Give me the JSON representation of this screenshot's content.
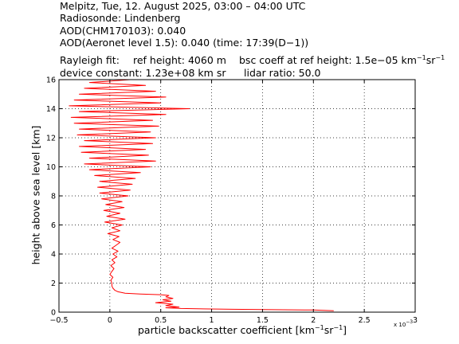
{
  "header": {
    "line1": "Melpitz, Tue, 12. August 2025, 03:00 – 04:00 UTC",
    "line2": "Radiosonde: Lindenberg",
    "line3": "AOD(CHM170103): 0.040",
    "line4": "AOD(Aeronet level 1.5): 0.040   (time: 17:39(D−1))",
    "rayleigh_label": "Rayleigh fit:",
    "ref_height": "ref height: 4060 m",
    "bsc_coeff_prefix": "bsc coeff at ref height: 1.5e−05 km",
    "bsc_coeff_unit_exp1": "−1",
    "bsc_coeff_unit_mid": "sr",
    "bsc_coeff_unit_exp2": "−1",
    "device_constant": "device constant: 1.23e+08 km sr",
    "lidar_ratio": "lidar ratio: 50.0"
  },
  "axes": {
    "xlabel_prefix": "particle backscatter coefficient [km",
    "xlabel_exp1": "−1",
    "xlabel_mid": "sr",
    "xlabel_exp2": "−1",
    "xlabel_suffix": "]",
    "ylabel": "height above sea level [km]",
    "x_multiplier": "x 10",
    "x_multiplier_exp": "−3"
  },
  "chart_data": {
    "type": "line",
    "title": "Melpitz, Tue, 12. August 2025, 03:00 – 04:00 UTC",
    "xlabel": "particle backscatter coefficient [km-1 sr-1]",
    "ylabel": "height above sea level [km]",
    "xlim": [
      -0.5,
      3
    ],
    "ylim": [
      0,
      16
    ],
    "x_scale": 0.001,
    "x_ticks": [
      -0.5,
      0,
      0.5,
      1,
      1.5,
      2,
      2.5,
      3
    ],
    "x_tick_labels": [
      "−0.5",
      "0",
      "0.5",
      "1",
      "1.5",
      "2",
      "2.5",
      "3"
    ],
    "y_ticks": [
      0,
      2,
      4,
      6,
      8,
      10,
      12,
      14,
      16
    ],
    "y_tick_labels": [
      "0",
      "2",
      "4",
      "6",
      "8",
      "10",
      "12",
      "14",
      "16"
    ],
    "grid": true,
    "line_color": "#ff0000",
    "series": [
      {
        "points": [
          [
            2.2,
            0.1
          ],
          [
            2.0,
            0.15
          ],
          [
            1.2,
            0.2
          ],
          [
            0.7,
            0.25
          ],
          [
            0.55,
            0.3
          ],
          [
            0.68,
            0.35
          ],
          [
            0.55,
            0.45
          ],
          [
            0.62,
            0.55
          ],
          [
            0.45,
            0.65
          ],
          [
            0.6,
            0.75
          ],
          [
            0.52,
            0.85
          ],
          [
            0.62,
            0.95
          ],
          [
            0.55,
            1.05
          ],
          [
            0.58,
            1.15
          ],
          [
            0.5,
            1.2
          ],
          [
            0.3,
            1.25
          ],
          [
            0.15,
            1.3
          ],
          [
            0.08,
            1.4
          ],
          [
            0.05,
            1.5
          ],
          [
            0.03,
            1.65
          ],
          [
            0.02,
            1.8
          ],
          [
            0.02,
            2.0
          ],
          [
            0.01,
            2.2
          ],
          [
            0.03,
            2.4
          ],
          [
            0.0,
            2.6
          ],
          [
            0.02,
            2.8
          ],
          [
            0.04,
            3.0
          ],
          [
            0.01,
            3.2
          ],
          [
            0.05,
            3.4
          ],
          [
            0.02,
            3.6
          ],
          [
            0.07,
            3.8
          ],
          [
            0.03,
            4.0
          ],
          [
            0.08,
            4.2
          ],
          [
            0.02,
            4.4
          ],
          [
            0.06,
            4.6
          ],
          [
            0.1,
            4.8
          ],
          [
            0.03,
            5.0
          ],
          [
            0.09,
            5.2
          ],
          [
            -0.02,
            5.4
          ],
          [
            0.1,
            5.6
          ],
          [
            0.02,
            5.8
          ],
          [
            0.12,
            6.0
          ],
          [
            -0.05,
            6.2
          ],
          [
            0.15,
            6.4
          ],
          [
            -0.03,
            6.6
          ],
          [
            0.1,
            6.8
          ],
          [
            -0.06,
            7.0
          ],
          [
            0.14,
            7.2
          ],
          [
            -0.04,
            7.4
          ],
          [
            0.12,
            7.6
          ],
          [
            -0.08,
            7.8
          ],
          [
            0.18,
            8.0
          ],
          [
            -0.1,
            8.2
          ],
          [
            0.2,
            8.4
          ],
          [
            -0.12,
            8.6
          ],
          [
            0.22,
            8.8
          ],
          [
            -0.1,
            9.0
          ],
          [
            0.25,
            9.2
          ],
          [
            -0.15,
            9.4
          ],
          [
            0.3,
            9.6
          ],
          [
            -0.2,
            9.8
          ],
          [
            0.4,
            10.0
          ],
          [
            -0.25,
            10.2
          ],
          [
            0.45,
            10.4
          ],
          [
            -0.2,
            10.6
          ],
          [
            0.38,
            10.8
          ],
          [
            -0.28,
            11.0
          ],
          [
            0.35,
            11.2
          ],
          [
            -0.3,
            11.4
          ],
          [
            0.42,
            11.6
          ],
          [
            -0.25,
            11.8
          ],
          [
            0.45,
            12.0
          ],
          [
            -0.32,
            12.2
          ],
          [
            0.4,
            12.4
          ],
          [
            -0.3,
            12.6
          ],
          [
            0.48,
            12.8
          ],
          [
            -0.35,
            13.0
          ],
          [
            0.42,
            13.2
          ],
          [
            -0.38,
            13.4
          ],
          [
            0.55,
            13.6
          ],
          [
            -0.3,
            13.8
          ],
          [
            0.78,
            14.0
          ],
          [
            -0.4,
            14.2
          ],
          [
            0.5,
            14.4
          ],
          [
            -0.35,
            14.6
          ],
          [
            0.55,
            14.8
          ],
          [
            -0.3,
            15.0
          ],
          [
            0.45,
            15.2
          ],
          [
            -0.25,
            15.4
          ],
          [
            0.35,
            15.6
          ],
          [
            -0.2,
            15.8
          ],
          [
            0.2,
            16.0
          ]
        ]
      }
    ]
  }
}
